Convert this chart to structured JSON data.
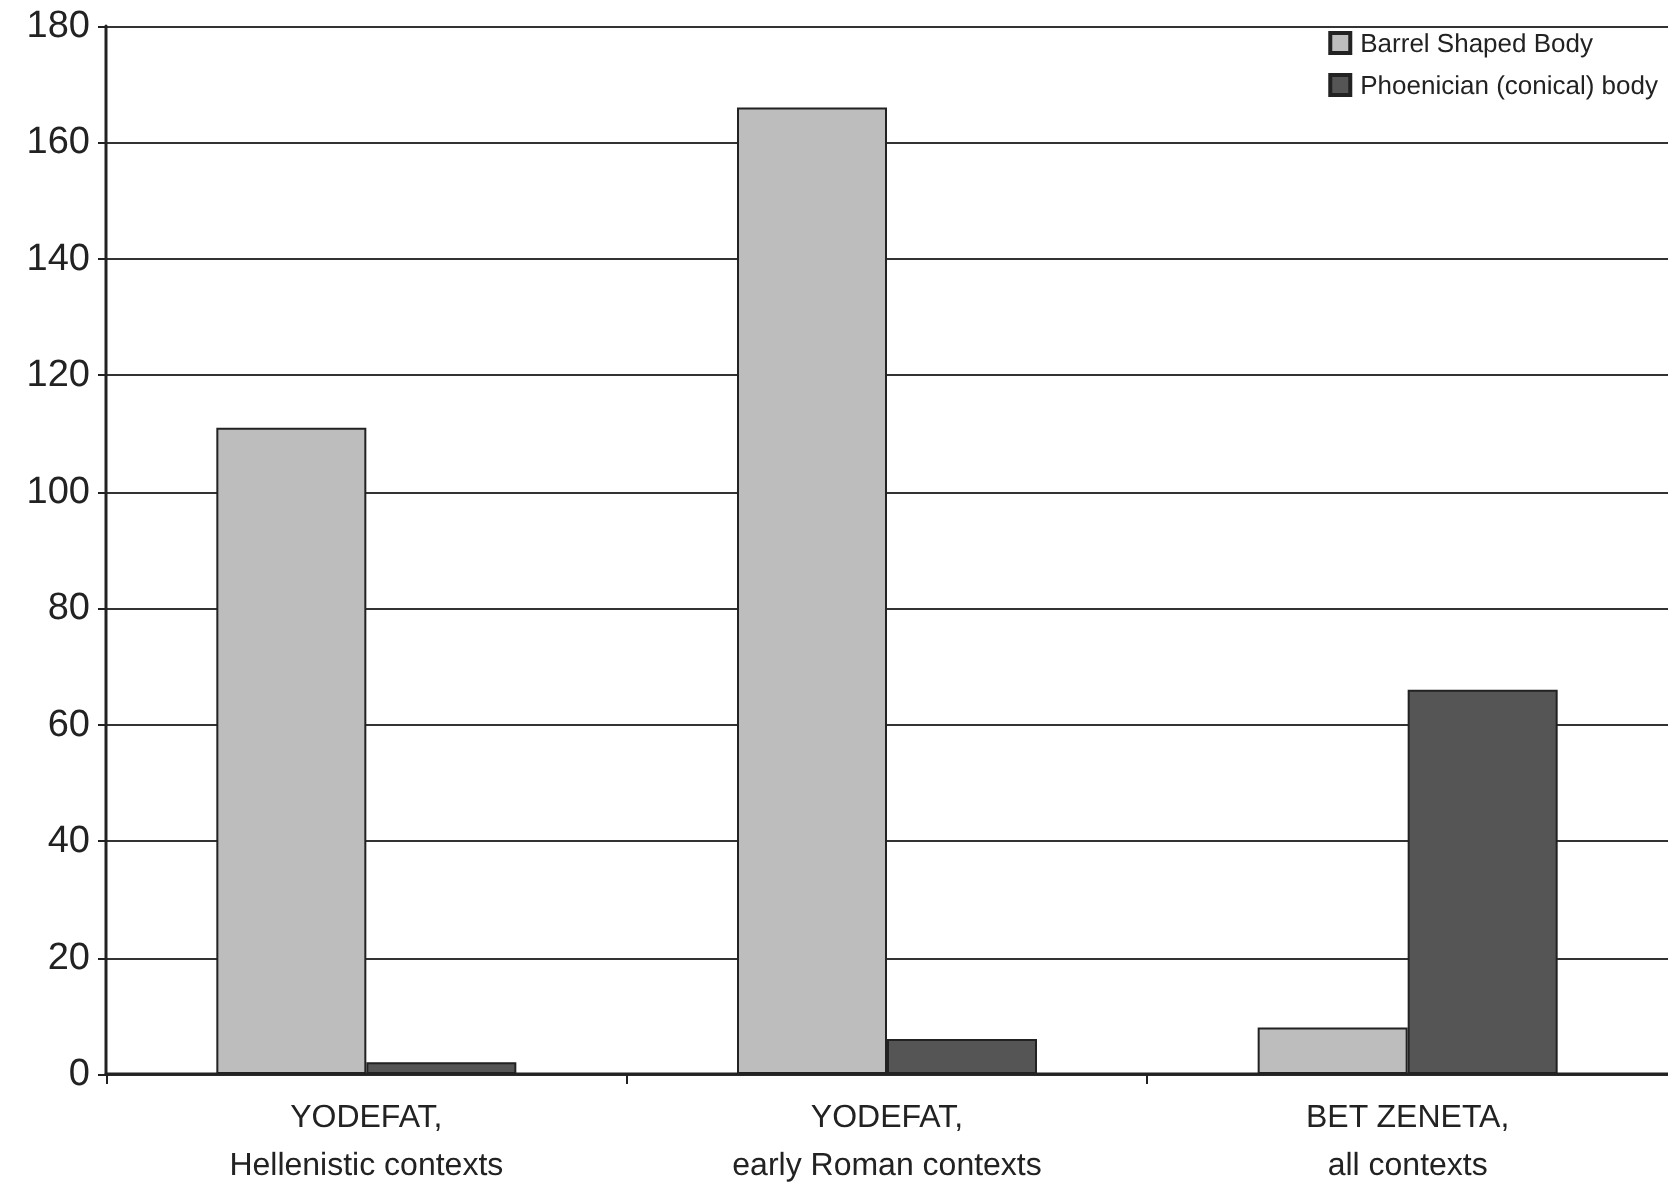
{
  "chart_data": {
    "type": "bar",
    "categories": [
      "YODEFAT,\nHellenistic contexts",
      "YODEFAT,\nearly Roman contexts",
      "BET ZENETA,\nall contexts"
    ],
    "series": [
      {
        "name": "Barrel Shaped Body",
        "color": "#bdbdbd",
        "values": [
          111,
          166,
          8
        ]
      },
      {
        "name": "Phoenician (conical) body",
        "color": "#555555",
        "values": [
          2,
          6,
          66
        ]
      }
    ],
    "ylim": [
      0,
      180
    ],
    "yticks": [
      0,
      20,
      40,
      60,
      80,
      100,
      120,
      140,
      160,
      180
    ],
    "grid": "y",
    "legend": "top right"
  }
}
